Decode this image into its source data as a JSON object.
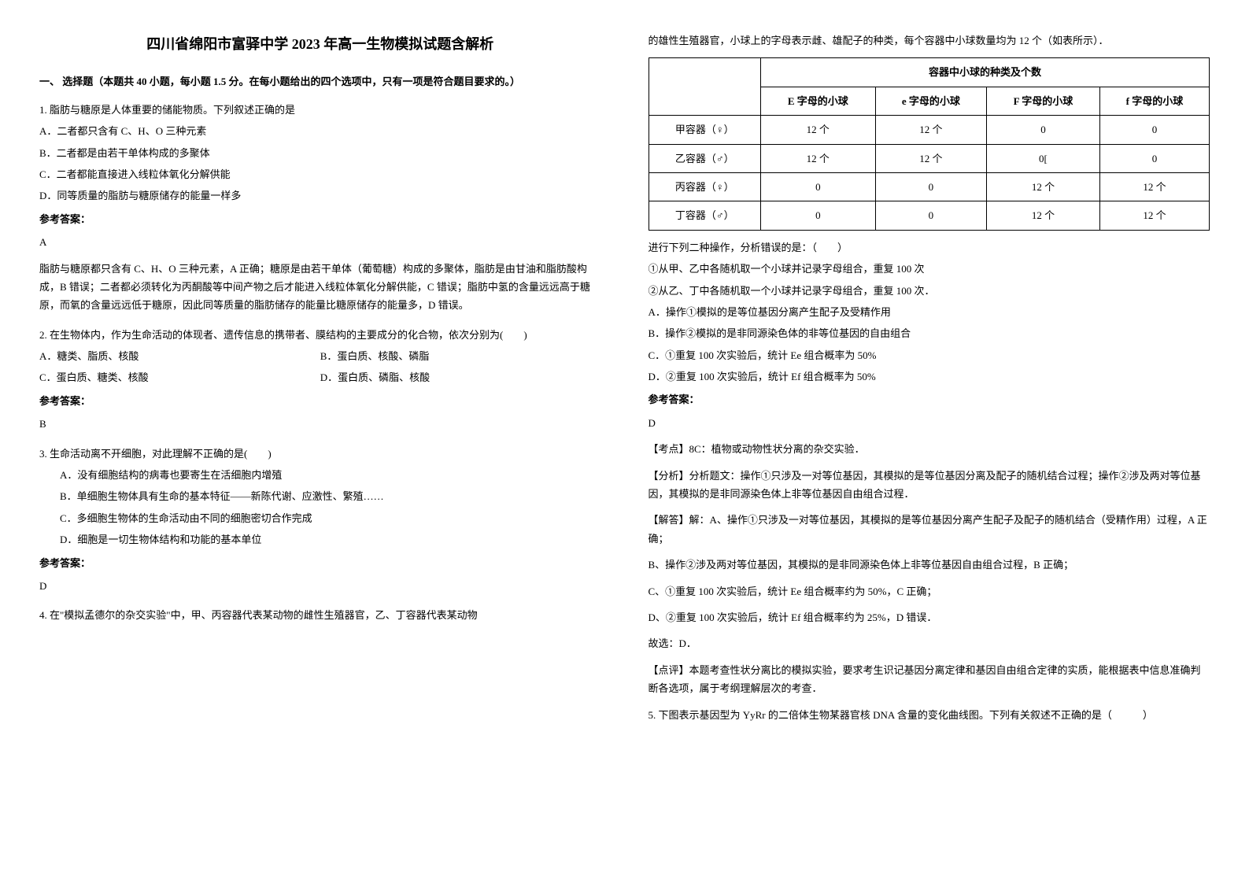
{
  "title": "四川省绵阳市富驿中学 2023 年高一生物模拟试题含解析",
  "section1_heading": "一、 选择题（本题共 40 小题，每小题 1.5 分。在每小题给出的四个选项中，只有一项是符合题目要求的。）",
  "q1": {
    "text": "1. 脂肪与糖原是人体重要的储能物质。下列叙述正确的是",
    "optA": "A．二者都只含有 C、H、O 三种元素",
    "optB": "B．二者都是由若干单体构成的多聚体",
    "optC": "C．二者都能直接进入线粒体氧化分解供能",
    "optD": "D．同等质量的脂肪与糖原储存的能量一样多",
    "answer_label": "参考答案：",
    "answer": "A",
    "explanation": "脂肪与糖原都只含有 C、H、O 三种元素，A 正确；糖原是由若干单体（葡萄糖）构成的多聚体，脂肪是由甘油和脂肪酸构成，B 错误；二者都必须转化为丙酮酸等中间产物之后才能进入线粒体氧化分解供能，C 错误；脂肪中氢的含量远远高于糖原，而氧的含量远远低于糖原，因此同等质量的脂肪储存的能量比糖原储存的能量多，D 错误。"
  },
  "q2": {
    "text": "2. 在生物体内，作为生命活动的体现者、遗传信息的携带者、膜结构的主要成分的化合物，依次分别为(　　)",
    "optA": "A．糖类、脂质、核酸",
    "optB": "B．蛋白质、核酸、磷脂",
    "optC": "C．蛋白质、糖类、核酸",
    "optD": "D．蛋白质、磷脂、核酸",
    "answer_label": "参考答案：",
    "answer": "B"
  },
  "q3": {
    "text": "3. 生命活动离不开细胞，对此理解不正确的是(　　)",
    "optA": "A．没有细胞结构的病毒也要寄生在活细胞内增殖",
    "optB": "B．单细胞生物体具有生命的基本特征——新陈代谢、应激性、繁殖……",
    "optC": "C．多细胞生物体的生命活动由不同的细胞密切合作完成",
    "optD": "D．细胞是一切生物体结构和功能的基本单位",
    "answer_label": "参考答案：",
    "answer": "D"
  },
  "q4": {
    "text_part1": "4. 在\"模拟孟德尔的杂交实验\"中，甲、丙容器代表某动物的雌性生殖器官，乙、丁容器代表某动物",
    "text_part2": "的雄性生殖器官，小球上的字母表示雌、雄配子的种类，每个容器中小球数量均为 12 个（如表所示）．",
    "table": {
      "header_merged": "容器中小球的种类及个数",
      "col1": "E 字母的小球",
      "col2": "e 字母的小球",
      "col3": "F 字母的小球",
      "col4": "f 字母的小球",
      "rows": [
        {
          "label": "甲容器（♀）",
          "c1": "12 个",
          "c2": "12 个",
          "c3": "0",
          "c4": "0"
        },
        {
          "label": "乙容器（♂）",
          "c1": "12 个",
          "c2": "12 个",
          "c3": "0[",
          "c4": "0"
        },
        {
          "label": "丙容器（♀）",
          "c1": "0",
          "c2": "0",
          "c3": "12 个",
          "c4": "12 个"
        },
        {
          "label": "丁容器（♂）",
          "c1": "0",
          "c2": "0",
          "c3": "12 个",
          "c4": "12 个"
        }
      ]
    },
    "after_table": "进行下列二种操作，分析错误的是：（　　）",
    "op1": "①从甲、乙中各随机取一个小球并记录字母组合，重复 100 次",
    "op2": "②从乙、丁中各随机取一个小球并记录字母组合，重复 100 次．",
    "optA": "A．操作①模拟的是等位基因分离产生配子及受精作用",
    "optB": "B．操作②模拟的是非同源染色体的非等位基因的自由组合",
    "optC": "C．①重复 100 次实验后，统计 Ee 组合概率为 50%",
    "optD": "D．②重复 100 次实验后，统计 Ef 组合概率为 50%",
    "answer_label": "参考答案：",
    "answer": "D",
    "exam_point_label": "【考点】8C：植物或动物性状分离的杂交实验．",
    "analysis_label": "【分析】分析题文：操作①只涉及一对等位基因，其模拟的是等位基因分离及配子的随机结合过程；操作②涉及两对等位基因，其模拟的是非同源染色体上非等位基因自由组合过程．",
    "solution_label": "【解答】解：A、操作①只涉及一对等位基因，其模拟的是等位基因分离产生配子及配子的随机结合（受精作用）过程，A 正确；",
    "solB": "B、操作②涉及两对等位基因，其模拟的是非同源染色体上非等位基因自由组合过程，B 正确；",
    "solC": "C、①重复 100 次实验后，统计 Ee 组合概率约为 50%，C 正确；",
    "solD": "D、②重复 100 次实验后，统计 Ef 组合概率约为 25%，D 错误．",
    "conclusion": "故选：D．",
    "comment": "【点评】本题考查性状分离比的模拟实验，要求考生识记基因分离定律和基因自由组合定律的实质，能根据表中信息准确判断各选项，属于考纲理解层次的考查．"
  },
  "q5": {
    "text": "5. 下图表示基因型为 YyRr 的二倍体生物某器官核 DNA 含量的变化曲线图。下列有关叙述不正确的是（　　　）"
  }
}
